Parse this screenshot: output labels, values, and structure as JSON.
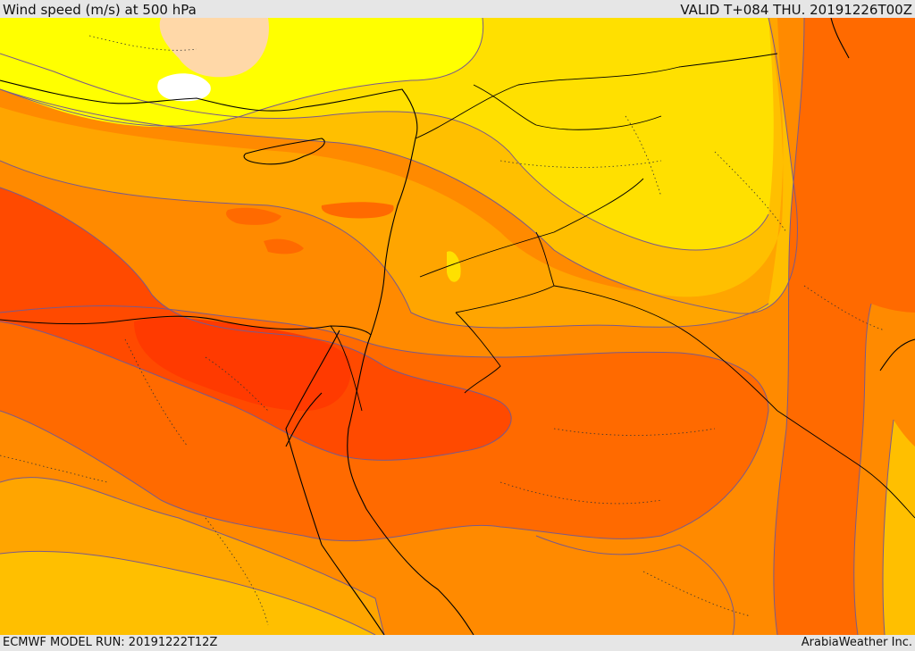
{
  "header": {
    "title": "Wind speed (m/s) at 500 hPa",
    "valid": "VALID T+084 THU. 20191226T00Z"
  },
  "footer": {
    "model_run": "ECMWF MODEL RUN: 20191222T12Z",
    "credit": "ArabiaWeather Inc."
  },
  "palette": {
    "white": "#ffffff",
    "peach": "#ffd8a8",
    "yellow": "#ffff00",
    "gold": "#ffe000",
    "amber": "#ffbf00",
    "orange_light": "#ffa500",
    "orange": "#ff8a00",
    "orange_dark": "#ff6a00",
    "red_orange": "#ff4a00",
    "red": "#ff3a00",
    "contour": "#7a5a8a",
    "border": "#000000"
  }
}
